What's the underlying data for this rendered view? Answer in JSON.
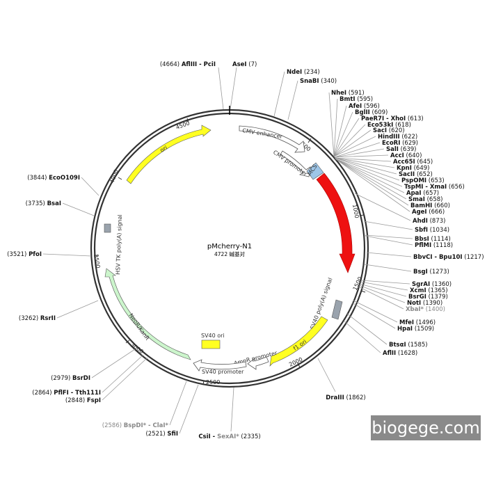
{
  "plasmid": {
    "name": "pMcherry-N1",
    "size_label": "4722 碱基对",
    "length": 4722
  },
  "ticks": [
    "500",
    "1000",
    "1500",
    "2000",
    "2500",
    "3000",
    "3500",
    "4000",
    "4500"
  ],
  "features": [
    {
      "id": "cmv-enhancer",
      "label": "CMV enhancer",
      "type": "outline"
    },
    {
      "id": "cmv-promoter",
      "label": "CMV promoter",
      "type": "outline"
    },
    {
      "id": "mcs",
      "label": "MCS",
      "type": "box",
      "color": "#9ec6e8"
    },
    {
      "id": "mcherry",
      "label": "mCherry",
      "type": "filled",
      "color": "#ee1111"
    },
    {
      "id": "sv40-polya",
      "label": "SV40 poly(A) signal",
      "type": "box",
      "color": "#9aa3ad"
    },
    {
      "id": "f1-ori",
      "label": "f1 ori",
      "type": "filled",
      "color": "#ffff22"
    },
    {
      "id": "ampr-promoter",
      "label": "AmpR promoter",
      "type": "outline"
    },
    {
      "id": "sv40-promoter",
      "label": "SV40 promoter",
      "type": "outline"
    },
    {
      "id": "sv40-ori",
      "label": "SV40 ori",
      "type": "box",
      "color": "#ffff22"
    },
    {
      "id": "neokanr",
      "label": "NeoR/KanR",
      "type": "filled",
      "color": "#ccf5cc"
    },
    {
      "id": "hsv-tk-polya",
      "label": "HSV TK poly(A) signal",
      "type": "box",
      "color": "#9aa3ad"
    },
    {
      "id": "ori",
      "label": "ori",
      "type": "filled",
      "color": "#ffff22"
    }
  ],
  "sites_right": [
    {
      "name": "NdeI",
      "pos": "(234)"
    },
    {
      "name": "SnaBI",
      "pos": "(340)"
    },
    {
      "name": "NheI",
      "pos": "(591)"
    },
    {
      "name": "BmtI",
      "pos": "(595)"
    },
    {
      "name": "AfeI",
      "pos": "(596)"
    },
    {
      "name": "BglII",
      "pos": "(609)"
    },
    {
      "name": "PaeR7I - XhoI",
      "pos": "(613)"
    },
    {
      "name": "Eco53kI",
      "pos": "(618)"
    },
    {
      "name": "SacI",
      "pos": "(620)"
    },
    {
      "name": "HindIII",
      "pos": "(622)"
    },
    {
      "name": "EcoRI",
      "pos": "(629)"
    },
    {
      "name": "SalI",
      "pos": "(639)"
    },
    {
      "name": "AccI",
      "pos": "(640)"
    },
    {
      "name": "Acc65I",
      "pos": "(645)"
    },
    {
      "name": "KpnI",
      "pos": "(649)"
    },
    {
      "name": "SacII",
      "pos": "(652)"
    },
    {
      "name": "PspOMI",
      "pos": "(653)"
    },
    {
      "name": "TspMI - XmaI",
      "pos": "(656)"
    },
    {
      "name": "ApaI",
      "pos": "(657)"
    },
    {
      "name": "SmaI",
      "pos": "(658)"
    },
    {
      "name": "BamHI",
      "pos": "(660)"
    },
    {
      "name": "AgeI",
      "pos": "(666)"
    },
    {
      "name": "AhdI",
      "pos": "(873)"
    },
    {
      "name": "SbfI",
      "pos": "(1034)"
    },
    {
      "name": "BbsI",
      "pos": "(1114)"
    },
    {
      "name": "PflMI",
      "pos": "(1118)"
    },
    {
      "name": "BbvCI - Bpu10I",
      "pos": "(1217)"
    },
    {
      "name": "BsgI",
      "pos": "(1273)"
    },
    {
      "name": "SgrAI",
      "pos": "(1360)"
    },
    {
      "name": "XcmI",
      "pos": "(1365)"
    },
    {
      "name": "BsrGI",
      "pos": "(1379)"
    },
    {
      "name": "NotI",
      "pos": "(1390)"
    },
    {
      "name": "XbaI*",
      "pos": "(1400)"
    },
    {
      "name": "MfeI",
      "pos": "(1496)"
    },
    {
      "name": "HpaI",
      "pos": "(1509)"
    },
    {
      "name": "BtsαI",
      "pos": "(1585)"
    },
    {
      "name": "AflII",
      "pos": "(1628)"
    },
    {
      "name": "DraIII",
      "pos": "(1862)"
    }
  ],
  "sites_top": [
    {
      "pos": "(4664)",
      "name": "AflIII - PciI"
    },
    {
      "name": "AseI",
      "pos": "(7)"
    }
  ],
  "sites_left": [
    {
      "pos": "(3844)",
      "name": "EcoO109I"
    },
    {
      "pos": "(3735)",
      "name": "BsaI"
    },
    {
      "pos": "(3521)",
      "name": "PfoI"
    },
    {
      "pos": "(3262)",
      "name": "RsrII"
    },
    {
      "pos": "(2979)",
      "name": "BsrDI"
    },
    {
      "pos": "(2864)",
      "name": "PflFI - Tth111I"
    },
    {
      "pos": "(2848)",
      "name": "FspI"
    },
    {
      "pos": "(2586)",
      "name": "BspDI* - ClaI*"
    },
    {
      "pos": "(2521)",
      "name": "SfiI"
    },
    {
      "name": "CsiI - SexAI*",
      "pos": "(2335)"
    }
  ],
  "watermark": "biogege.com"
}
